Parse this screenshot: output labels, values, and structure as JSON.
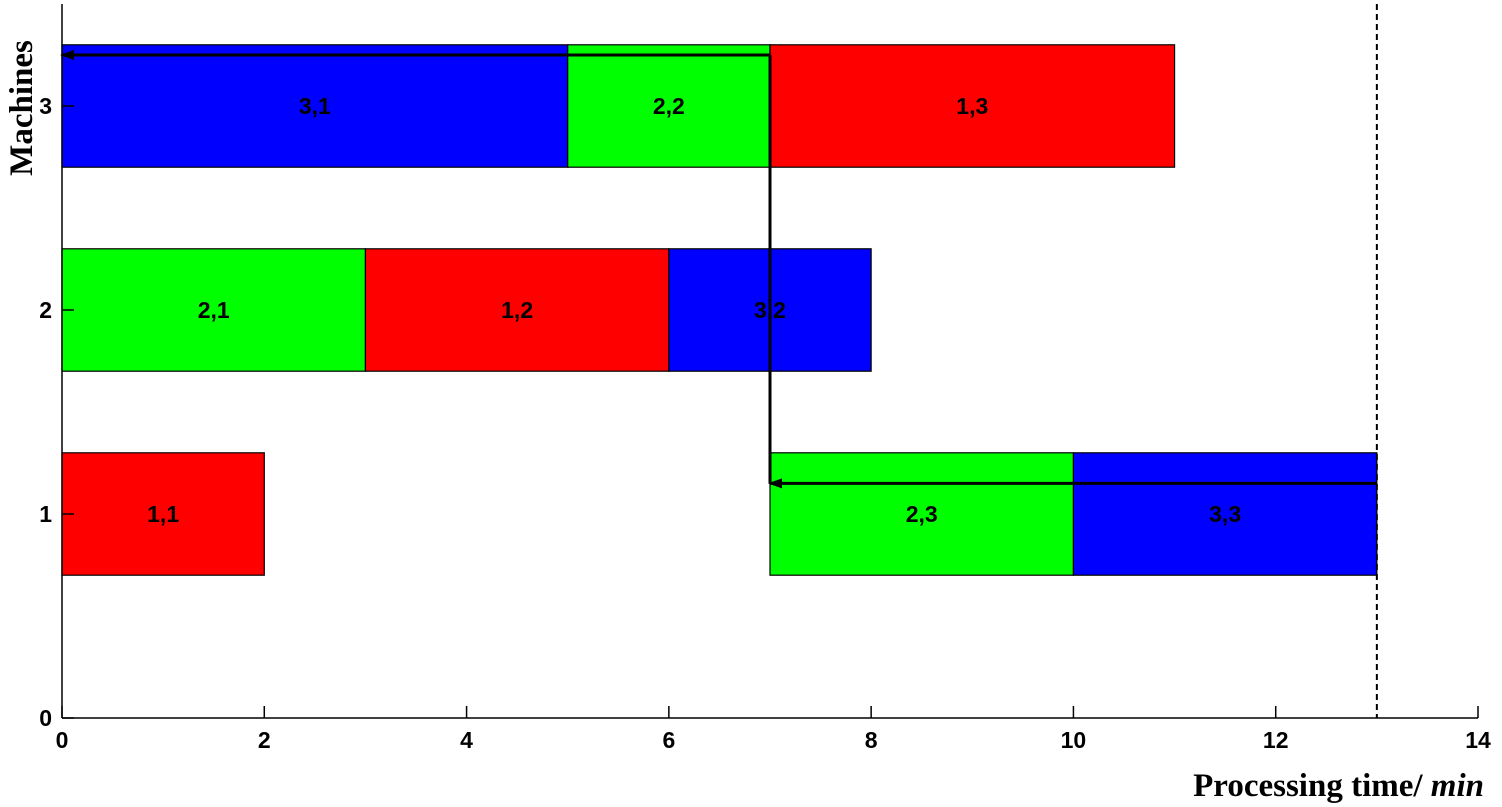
{
  "chart_data": {
    "type": "gantt",
    "xlabel": "Processing time/ ",
    "xlabel_unit": "min",
    "ylabel": "Machines",
    "xlim": [
      0,
      14
    ],
    "ylim": [
      0,
      3.5
    ],
    "xticks": [
      "0",
      "2",
      "4",
      "6",
      "8",
      "10",
      "12",
      "14"
    ],
    "yticks": [
      "0",
      "1",
      "2",
      "3"
    ],
    "grid": false,
    "colors": {
      "job1": "#ff0000",
      "job2": "#00ff00",
      "job3": "#0000ff"
    },
    "tasks": [
      {
        "label": "1,1",
        "machine": 1,
        "job": 1,
        "start": 0,
        "end": 2
      },
      {
        "label": "2,3",
        "machine": 1,
        "job": 2,
        "start": 7,
        "end": 10
      },
      {
        "label": "3,3",
        "machine": 1,
        "job": 3,
        "start": 10,
        "end": 13
      },
      {
        "label": "2,1",
        "machine": 2,
        "job": 2,
        "start": 0,
        "end": 3
      },
      {
        "label": "1,2",
        "machine": 2,
        "job": 1,
        "start": 3,
        "end": 6
      },
      {
        "label": "3,2",
        "machine": 2,
        "job": 3,
        "start": 6,
        "end": 8
      },
      {
        "label": "3,1",
        "machine": 3,
        "job": 3,
        "start": 0,
        "end": 5
      },
      {
        "label": "2,2",
        "machine": 3,
        "job": 2,
        "start": 5,
        "end": 7
      },
      {
        "label": "1,3",
        "machine": 3,
        "job": 1,
        "start": 7,
        "end": 11
      }
    ],
    "makespan": 13,
    "critical_path": [
      [
        13,
        1.15
      ],
      [
        7,
        1.15
      ],
      [
        7,
        3.25
      ],
      [
        0,
        3.25
      ]
    ]
  }
}
